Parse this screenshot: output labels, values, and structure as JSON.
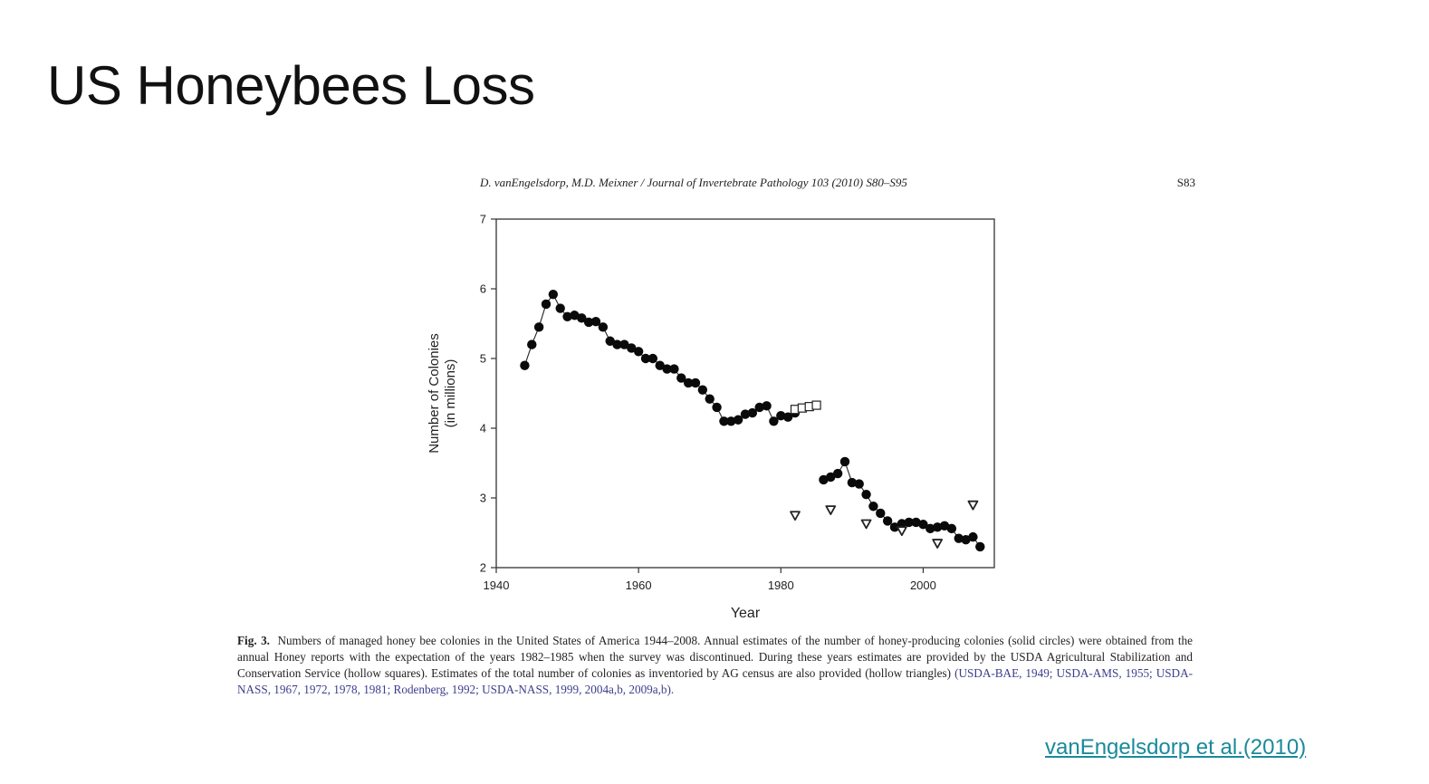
{
  "slide": {
    "title": "US Honeybees Loss",
    "source_link": "vanEngelsdorp et al.(2010)"
  },
  "figure": {
    "journal_header": "D. vanEngelsdorp, M.D. Meixner / Journal of Invertebrate Pathology 103 (2010) S80–S95",
    "page_number": "S83",
    "caption_label": "Fig. 3.",
    "caption_text": "Numbers of managed honey bee colonies in the United States of America 1944–2008. Annual estimates of the number of honey-producing colonies (solid circles) were obtained from the annual Honey reports with the expectation of the years 1982–1985 when the survey was discontinued. During these years estimates are provided by the USDA Agricultural Stabilization and Conservation Service (hollow squares). Estimates of the total number of colonies as inventoried by AG census are also provided (hollow triangles)",
    "caption_refs": "(USDA-BAE, 1949; USDA-AMS, 1955; USDA-NASS, 1967, 1972, 1978, 1981; Rodenberg, 1992; USDA-NASS, 1999, 2004a,b, 2009a,b)."
  },
  "chart_data": {
    "type": "scatter",
    "title": "",
    "xlabel": "Year",
    "ylabel": "Number of Colonies",
    "ylabel_sub": "(in millions)",
    "xlim": [
      1940,
      2010
    ],
    "ylim": [
      2,
      7
    ],
    "x_ticks": [
      1940,
      1960,
      1980,
      2000
    ],
    "y_ticks": [
      2,
      3,
      4,
      5,
      6,
      7
    ],
    "grid": false,
    "series": [
      {
        "marker": "solid-circle",
        "connected": true,
        "segments": [
          {
            "x": [
              1944,
              1945,
              1946,
              1947,
              1948,
              1949,
              1950,
              1951,
              1952,
              1953,
              1954,
              1955,
              1956,
              1957,
              1958,
              1959,
              1960,
              1961,
              1962,
              1963,
              1964,
              1965,
              1966,
              1967,
              1968,
              1969,
              1970,
              1971,
              1972,
              1973,
              1974,
              1975,
              1976,
              1977,
              1978,
              1979,
              1980,
              1981
            ],
            "y": [
              4.9,
              5.2,
              5.45,
              5.78,
              5.92,
              5.72,
              5.6,
              5.62,
              5.58,
              5.52,
              5.53,
              5.45,
              5.25,
              5.2,
              5.2,
              5.15,
              5.1,
              5.0,
              5.0,
              4.9,
              4.85,
              4.85,
              4.72,
              4.65,
              4.65,
              4.55,
              4.42,
              4.3,
              4.1,
              4.1,
              4.12,
              4.2,
              4.22,
              4.3,
              4.32,
              4.1,
              4.18,
              4.16
            ]
          },
          {
            "x": [
              1982
            ],
            "y": [
              4.22
            ]
          },
          {
            "x": [
              1986,
              1987,
              1988,
              1989,
              1990,
              1991,
              1992,
              1993,
              1994,
              1995,
              1996,
              1997,
              1998,
              1999,
              2000,
              2001,
              2002,
              2003,
              2004,
              2005,
              2006,
              2007,
              2008
            ],
            "y": [
              3.26,
              3.3,
              3.35,
              3.52,
              3.22,
              3.2,
              3.05,
              2.88,
              2.78,
              2.67,
              2.58,
              2.63,
              2.65,
              2.65,
              2.62,
              2.56,
              2.58,
              2.6,
              2.56,
              2.42,
              2.4,
              2.44,
              2.3
            ]
          }
        ]
      },
      {
        "marker": "hollow-square",
        "connected": true,
        "x": [
          1982,
          1983,
          1984,
          1985
        ],
        "y": [
          4.27,
          4.29,
          4.31,
          4.33
        ]
      },
      {
        "marker": "hollow-triangle",
        "connected": false,
        "x": [
          1982,
          1987,
          1992,
          1997,
          2002,
          2007
        ],
        "y": [
          2.75,
          2.83,
          2.63,
          2.53,
          2.35,
          2.9
        ]
      }
    ]
  }
}
